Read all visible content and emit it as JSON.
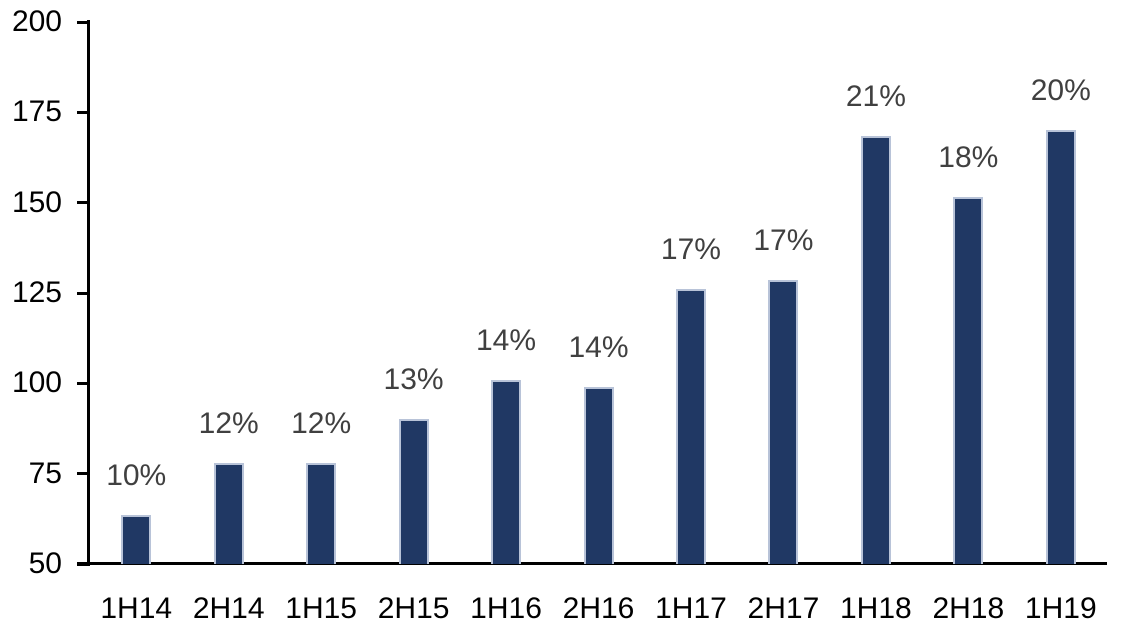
{
  "chart_data": {
    "type": "bar",
    "title": "",
    "xlabel": "",
    "ylabel": "",
    "categories": [
      "1H14",
      "2H14",
      "1H15",
      "2H15",
      "1H16",
      "2H16",
      "1H17",
      "2H17",
      "1H18",
      "2H18",
      "1H19"
    ],
    "values": [
      63.5,
      78,
      78,
      90,
      101,
      99,
      126,
      128.5,
      168.5,
      151.5,
      170
    ],
    "bar_labels": [
      "10%",
      "12%",
      "12%",
      "13%",
      "14%",
      "14%",
      "17%",
      "17%",
      "21%",
      "18%",
      "20%"
    ],
    "ylim": [
      50,
      200
    ],
    "yticks": [
      50,
      75,
      100,
      125,
      150,
      175,
      200
    ],
    "grid": false,
    "legend": "none",
    "colors": {
      "bar_fill": "#203864",
      "bar_border": "#B8C3D8",
      "data_label": "#404040",
      "axis_text": "#000000",
      "axis_line": "#000000",
      "background": "#FFFFFF"
    }
  }
}
